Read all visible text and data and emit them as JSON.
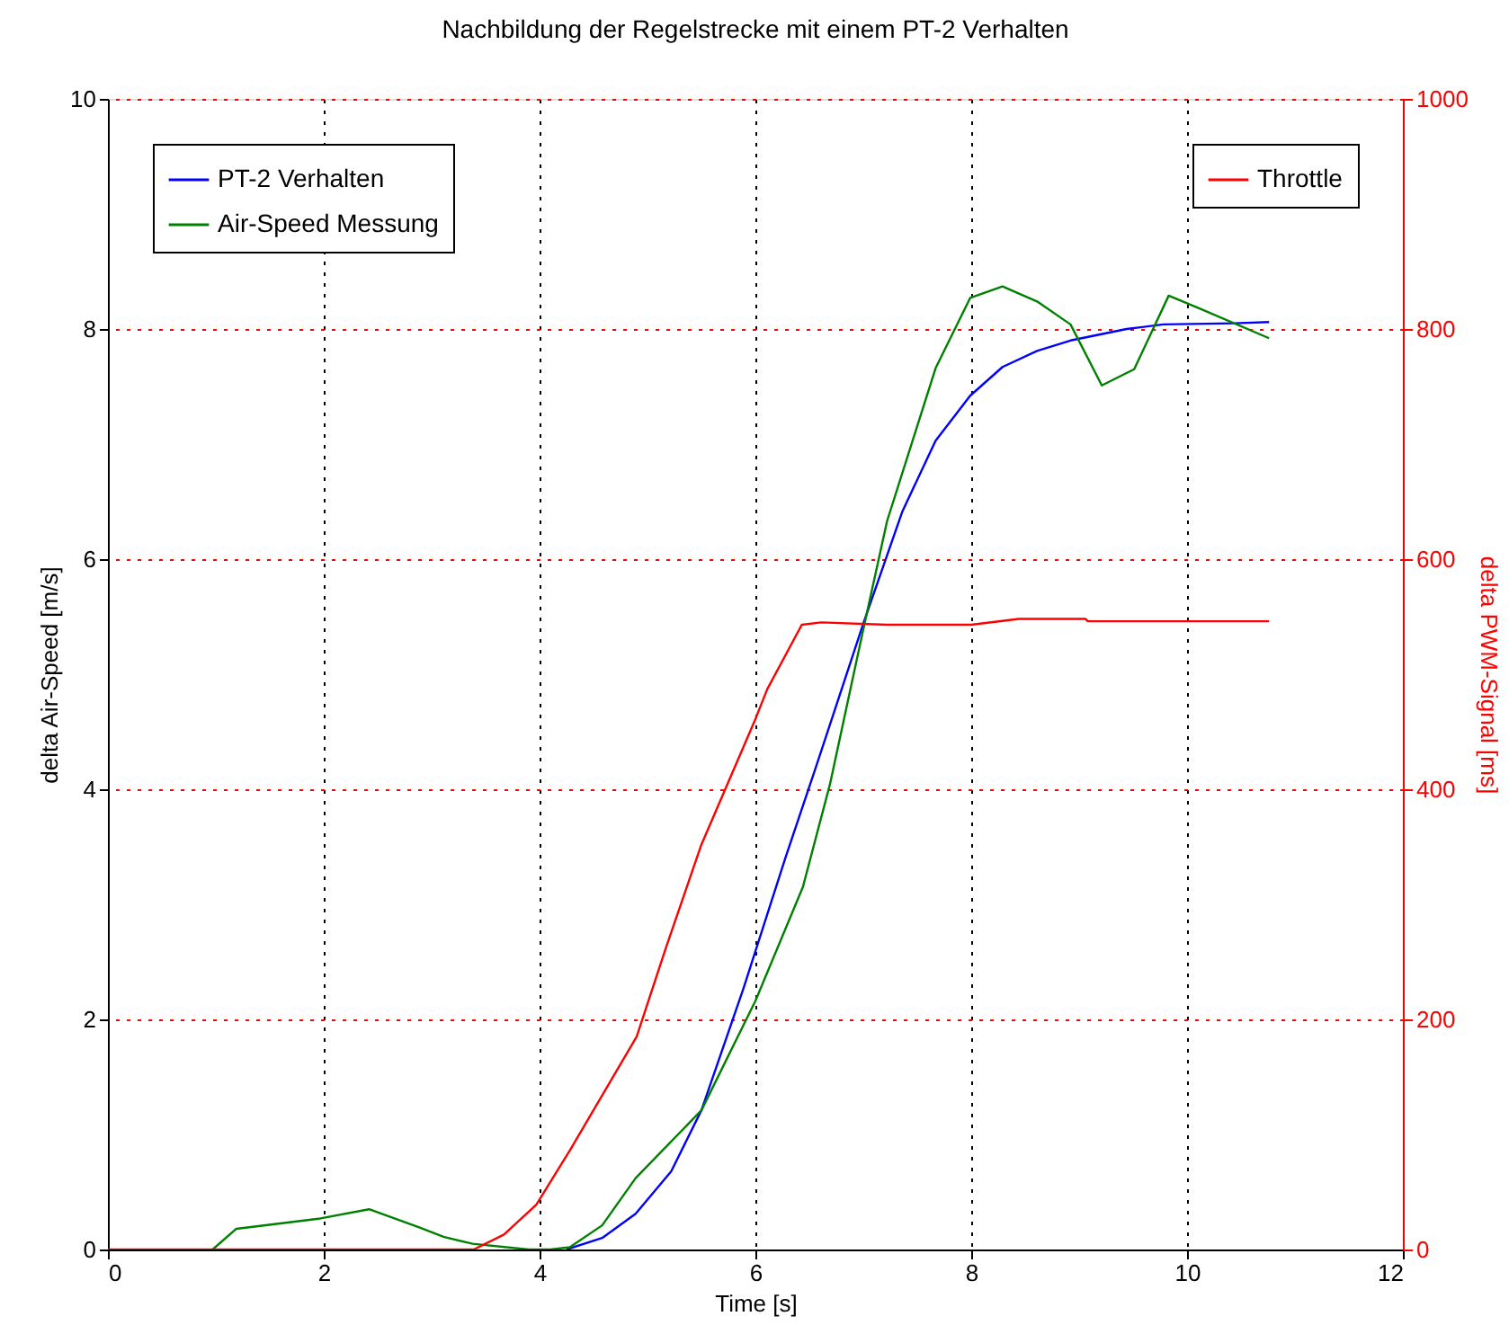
{
  "chart_data": {
    "type": "line",
    "title": "Nachbildung der Regelstrecke mit einem PT-2 Verhalten",
    "xlabel": "Time [s]",
    "ylabel": "delta Air-Speed [m/s]",
    "y2label": "delta PWM-Signal [ms]",
    "xlim": [
      0,
      12
    ],
    "xticks": [
      0,
      2,
      4,
      6,
      8,
      10,
      12
    ],
    "ylim": [
      0,
      10
    ],
    "yticks": [
      0,
      2,
      4,
      6,
      8,
      10
    ],
    "y2lim": [
      0,
      1000
    ],
    "y2ticks": [
      0,
      200,
      400,
      600,
      800,
      1000
    ],
    "grid": true,
    "legend": "top left",
    "line_style": "solid",
    "series": [
      {
        "name": "PT-2 Verhalten",
        "color": "#0000ff",
        "x": [
          4.25,
          4.58,
          4.89,
          5.22,
          5.5,
          5.89,
          6.28,
          6.56,
          7.0,
          7.36,
          7.67,
          7.99,
          8.29,
          8.61,
          8.92,
          9.44,
          9.78,
          10.44,
          10.76
        ],
        "values": [
          0,
          0.1,
          0.31,
          0.68,
          1.21,
          2.27,
          3.41,
          4.19,
          5.44,
          6.41,
          7.03,
          7.42,
          7.67,
          7.81,
          7.9,
          8.0,
          8.04,
          8.05,
          8.06
        ]
      },
      {
        "name": "Air-Speed Messung",
        "color": "#008000",
        "x": [
          0.97,
          1.19,
          1.97,
          2.42,
          2.89,
          3.11,
          3.38,
          3.9,
          4.1,
          4.28,
          4.58,
          4.89,
          5.5,
          6.0,
          6.44,
          6.69,
          7.0,
          7.22,
          7.67,
          7.99,
          8.29,
          8.61,
          8.92,
          9.21,
          9.51,
          9.83,
          10.11,
          10.76
        ],
        "values": [
          0,
          0.18,
          0.27,
          0.35,
          0.19,
          0.11,
          0.05,
          0,
          0,
          0.02,
          0.21,
          0.62,
          1.21,
          2.16,
          3.15,
          4.04,
          5.39,
          6.33,
          7.66,
          8.27,
          8.37,
          8.24,
          8.04,
          7.51,
          7.65,
          8.29,
          8.18,
          7.92
        ]
      },
      {
        "name": "Throttle",
        "color": "#ff0000",
        "axis": "y2",
        "x": [
          0,
          3.39,
          3.67,
          3.97,
          4.28,
          4.9,
          5.17,
          5.5,
          6.0,
          6.11,
          6.43,
          6.61,
          7.22,
          8.0,
          8.44,
          9.06,
          9.08,
          10.76
        ],
        "values": [
          0,
          0,
          13,
          39,
          86,
          185,
          262,
          352,
          461,
          487,
          543,
          545,
          543,
          543,
          548,
          548,
          546,
          546
        ]
      }
    ]
  }
}
